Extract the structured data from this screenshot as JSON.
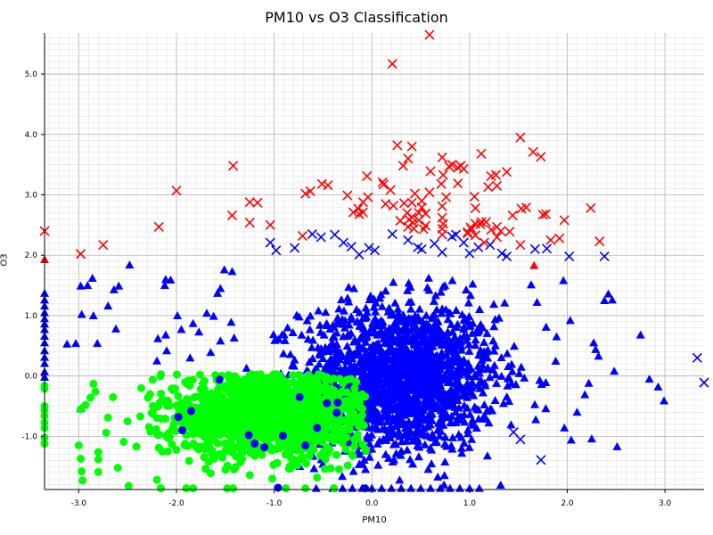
{
  "chart_data": {
    "type": "scatter",
    "title": "PM10 vs O3 Classification",
    "xlabel": "PM10",
    "ylabel": "O3",
    "xlim": [
      -3.35,
      3.4
    ],
    "ylim": [
      -1.88,
      5.68
    ],
    "x_ticks": [
      -3.0,
      -2.0,
      -1.0,
      0.0,
      1.0,
      2.0,
      3.0
    ],
    "y_ticks": [
      -1.0,
      0.0,
      1.0,
      2.0,
      3.0,
      4.0,
      5.0
    ],
    "grid": true,
    "legend": "none",
    "colors": {
      "red": "#ff0000",
      "blue": "#0000ff",
      "green": "#00ff00"
    },
    "series": [
      {
        "color": "red",
        "marker": "x",
        "points": [
          [
            0.59,
            5.65
          ],
          [
            0.21,
            5.17
          ],
          [
            1.52,
            3.95
          ],
          [
            1.73,
            3.63
          ],
          [
            1.65,
            3.71
          ],
          [
            0.26,
            3.82
          ],
          [
            0.41,
            3.8
          ],
          [
            0.72,
            3.62
          ],
          [
            0.82,
            3.5
          ],
          [
            0.88,
            3.45
          ],
          [
            0.91,
            3.48
          ],
          [
            1.12,
            3.68
          ],
          [
            0.32,
            3.48
          ],
          [
            0.37,
            3.6
          ],
          [
            0.6,
            3.39
          ],
          [
            0.73,
            3.33
          ],
          [
            0.79,
            3.47
          ],
          [
            1.22,
            3.31
          ],
          [
            1.27,
            3.33
          ],
          [
            1.38,
            3.38
          ],
          [
            1.19,
            3.13
          ],
          [
            1.28,
            3.15
          ],
          [
            0.88,
            3.19
          ],
          [
            0.94,
            3.43
          ],
          [
            0.71,
            3.18
          ],
          [
            -1.42,
            3.48
          ],
          [
            -2.0,
            3.07
          ],
          [
            -0.63,
            3.06
          ],
          [
            -0.68,
            3.02
          ],
          [
            -0.51,
            3.18
          ],
          [
            -0.45,
            3.16
          ],
          [
            -0.05,
            3.31
          ],
          [
            0.11,
            3.21
          ],
          [
            0.12,
            3.17
          ],
          [
            0.19,
            3.08
          ],
          [
            0.59,
            3.04
          ],
          [
            0.44,
            3.02
          ],
          [
            -0.25,
            2.99
          ],
          [
            -0.04,
            2.96
          ],
          [
            0.51,
            2.9
          ],
          [
            0.76,
            2.96
          ],
          [
            1.05,
            2.97
          ],
          [
            1.06,
            2.78
          ],
          [
            0.14,
            2.85
          ],
          [
            -1.25,
            2.88
          ],
          [
            -1.17,
            2.87
          ],
          [
            -0.09,
            2.88
          ],
          [
            0.41,
            2.87
          ],
          [
            0.33,
            2.86
          ],
          [
            0.22,
            2.82
          ],
          [
            0.51,
            2.79
          ],
          [
            0.72,
            2.81
          ],
          [
            -0.14,
            2.77
          ],
          [
            -0.19,
            2.71
          ],
          [
            -0.09,
            2.71
          ],
          [
            -0.13,
            2.68
          ],
          [
            0.36,
            2.7
          ],
          [
            0.41,
            2.63
          ],
          [
            0.48,
            2.7
          ],
          [
            0.55,
            2.69
          ],
          [
            0.72,
            2.62
          ],
          [
            1.12,
            2.55
          ],
          [
            1.44,
            2.66
          ],
          [
            1.53,
            2.77
          ],
          [
            1.58,
            2.79
          ],
          [
            1.75,
            2.67
          ],
          [
            1.78,
            2.68
          ],
          [
            1.97,
            2.58
          ],
          [
            2.24,
            2.78
          ],
          [
            -1.43,
            2.66
          ],
          [
            -2.18,
            2.47
          ],
          [
            -1.25,
            2.54
          ],
          [
            -1.04,
            2.5
          ],
          [
            0.29,
            2.57
          ],
          [
            0.38,
            2.59
          ],
          [
            0.42,
            2.54
          ],
          [
            0.48,
            2.58
          ],
          [
            0.55,
            2.49
          ],
          [
            0.37,
            2.47
          ],
          [
            0.43,
            2.44
          ],
          [
            0.53,
            2.43
          ],
          [
            0.73,
            2.52
          ],
          [
            0.72,
            2.44
          ],
          [
            1.01,
            2.46
          ],
          [
            1.06,
            2.52
          ],
          [
            1.11,
            2.51
          ],
          [
            1.17,
            2.55
          ],
          [
            1.22,
            2.42
          ],
          [
            1.28,
            2.47
          ],
          [
            1.32,
            2.4
          ],
          [
            1.41,
            2.39
          ],
          [
            0.98,
            2.38
          ],
          [
            1.02,
            2.43
          ],
          [
            1.06,
            2.33
          ],
          [
            0.98,
            2.36
          ],
          [
            1.28,
            2.3
          ],
          [
            0.72,
            2.34
          ],
          [
            -0.71,
            2.32
          ],
          [
            -2.75,
            2.17
          ],
          [
            -3.35,
            2.4
          ],
          [
            -2.98,
            2.02
          ],
          [
            1.52,
            2.17
          ],
          [
            1.83,
            2.25
          ],
          [
            1.92,
            2.28
          ],
          [
            2.33,
            2.23
          ],
          [
            1.15,
            2.21
          ]
        ]
      },
      {
        "color": "red",
        "marker": "triangle",
        "points": [
          [
            -3.35,
            1.93
          ],
          [
            1.66,
            1.83
          ]
        ]
      },
      {
        "color": "blue",
        "marker": "x",
        "points": [
          [
            3.33,
            0.3
          ],
          [
            3.4,
            -0.11
          ],
          [
            1.67,
            2.1
          ],
          [
            1.79,
            2.11
          ],
          [
            2.02,
            1.98
          ],
          [
            2.38,
            1.98
          ],
          [
            -1.04,
            2.21
          ],
          [
            -0.98,
            2.08
          ],
          [
            -0.79,
            2.12
          ],
          [
            -0.52,
            2.3
          ],
          [
            -0.38,
            2.34
          ],
          [
            -0.29,
            2.21
          ],
          [
            -0.13,
            2.01
          ],
          [
            -0.03,
            2.12
          ],
          [
            0.21,
            2.35
          ],
          [
            0.37,
            2.25
          ],
          [
            0.47,
            2.13
          ],
          [
            0.51,
            2.1
          ],
          [
            0.64,
            2.19
          ],
          [
            0.72,
            2.05
          ],
          [
            0.82,
            2.31
          ],
          [
            0.86,
            2.34
          ],
          [
            0.94,
            2.21
          ],
          [
            1.0,
            2.03
          ],
          [
            1.21,
            2.17
          ],
          [
            1.33,
            2.03
          ],
          [
            1.09,
            2.13
          ],
          [
            1.38,
            1.98
          ],
          [
            1.52,
            -1.05
          ],
          [
            1.73,
            -1.39
          ],
          [
            1.45,
            -0.93
          ],
          [
            -0.21,
            2.14
          ],
          [
            0.03,
            2.08
          ],
          [
            -0.61,
            2.35
          ]
        ]
      },
      {
        "color": "blue",
        "marker": "triangle",
        "cloud": {
          "n": 1700,
          "cx": 0.28,
          "cy": -0.02,
          "sx": 0.5,
          "sy": 0.62,
          "xmin": -1.55,
          "xmax": 2.1,
          "ymin": -1.88,
          "ymax": 1.95
        },
        "points": [
          [
            2.75,
            0.68
          ],
          [
            2.48,
            0.08
          ],
          [
            2.32,
            0.33
          ],
          [
            2.29,
            0.44
          ],
          [
            2.27,
            0.55
          ],
          [
            2.38,
            1.25
          ],
          [
            2.42,
            1.36
          ],
          [
            2.46,
            1.26
          ],
          [
            2.51,
            -1.17
          ],
          [
            2.25,
            -1.04
          ],
          [
            2.22,
            -0.12
          ],
          [
            2.18,
            -0.31
          ],
          [
            2.1,
            -0.6
          ],
          [
            1.97,
            -0.86
          ],
          [
            2.04,
            -1.06
          ],
          [
            1.78,
            -0.54
          ],
          [
            1.96,
            1.58
          ],
          [
            2.03,
            0.92
          ],
          [
            1.89,
            0.65
          ],
          [
            1.69,
            1.22
          ],
          [
            1.63,
            1.51
          ],
          [
            2.84,
            -0.05
          ],
          [
            2.93,
            -0.18
          ],
          [
            2.99,
            -0.41
          ],
          [
            -2.98,
            1.49
          ],
          [
            -2.91,
            1.5
          ],
          [
            -2.86,
            1.62
          ],
          [
            -2.64,
            1.43
          ],
          [
            -2.7,
            1.16
          ],
          [
            -2.48,
            1.84
          ],
          [
            -2.59,
            1.49
          ],
          [
            -2.62,
            0.78
          ],
          [
            -2.81,
            0.54
          ],
          [
            -2.85,
            1.0
          ],
          [
            -2.97,
            1.02
          ],
          [
            -3.12,
            0.53
          ],
          [
            -3.03,
            0.54
          ],
          [
            -2.11,
            1.6
          ],
          [
            -2.12,
            1.5
          ],
          [
            -2.06,
            1.59
          ],
          [
            -2.11,
            0.68
          ],
          [
            -2.19,
            0.62
          ],
          [
            -1.99,
            1.0
          ],
          [
            -1.95,
            0.77
          ],
          [
            -1.83,
            0.87
          ],
          [
            -1.69,
            1.04
          ],
          [
            -1.62,
            0.99
          ],
          [
            -1.55,
            0.58
          ],
          [
            -1.43,
            1.73
          ],
          [
            -1.51,
            1.76
          ],
          [
            -1.55,
            1.45
          ],
          [
            -1.58,
            1.37
          ],
          [
            -1.77,
            0.73
          ],
          [
            -1.44,
            0.89
          ],
          [
            -3.35,
            1.37
          ],
          [
            -3.35,
            1.26
          ],
          [
            -3.35,
            1.16
          ],
          [
            -3.35,
            1.05
          ],
          [
            -3.35,
            0.95
          ],
          [
            -3.35,
            0.86
          ],
          [
            -3.35,
            0.77
          ],
          [
            -3.35,
            0.66
          ],
          [
            -3.35,
            0.55
          ],
          [
            -3.35,
            0.42
          ],
          [
            -3.35,
            0.31
          ],
          [
            -3.35,
            0.21
          ],
          [
            -3.35,
            0.07
          ],
          [
            -3.35,
            -0.02
          ],
          [
            -2.98,
            -0.54
          ],
          [
            -2.1,
            0.42
          ],
          [
            -2.2,
            0.25
          ],
          [
            -1.86,
            0.3
          ],
          [
            -1.65,
            0.39
          ],
          [
            -1.73,
            -0.08
          ],
          [
            -1.41,
            0.63
          ],
          [
            -0.57,
            -1.86
          ],
          [
            -0.3,
            -1.86
          ],
          [
            -0.1,
            -1.86
          ],
          [
            0.1,
            -1.86
          ],
          [
            0.3,
            -1.86
          ],
          [
            0.5,
            -1.86
          ],
          [
            0.7,
            -1.86
          ],
          [
            0.9,
            -1.86
          ],
          [
            1.1,
            -1.86
          ],
          [
            0.0,
            -1.86
          ],
          [
            0.2,
            -1.86
          ],
          [
            0.4,
            -1.86
          ],
          [
            0.6,
            -1.86
          ],
          [
            0.8,
            -1.86
          ],
          [
            -0.2,
            -1.86
          ],
          [
            -0.4,
            -1.86
          ],
          [
            1.0,
            -1.86
          ]
        ]
      },
      {
        "color": "blue",
        "marker": "circle",
        "points": [
          [
            -0.07,
            -1.86
          ],
          [
            -0.96,
            -1.85
          ],
          [
            -1.85,
            -0.58
          ],
          [
            -1.94,
            -0.9
          ],
          [
            -1.98,
            -0.68
          ],
          [
            -1.1,
            -1.18
          ],
          [
            -0.74,
            -0.35
          ],
          [
            -0.68,
            -1.15
          ],
          [
            -0.36,
            -0.61
          ],
          [
            -0.35,
            -0.44
          ],
          [
            -1.56,
            -0.06
          ],
          [
            -1.2,
            -1.12
          ],
          [
            -0.91,
            -0.99
          ],
          [
            -0.56,
            -0.86
          ],
          [
            -0.46,
            -0.45
          ],
          [
            -1.26,
            -0.98
          ]
        ]
      },
      {
        "color": "green",
        "marker": "circle",
        "cloud": {
          "n": 1500,
          "cx": -1.05,
          "cy": -0.62,
          "sx": 0.55,
          "sy": 0.35,
          "xmin": -2.3,
          "xmax": -0.06,
          "ymin": -1.6,
          "ymax": 0.04
        },
        "points": [
          [
            -3.35,
            -0.16
          ],
          [
            -3.35,
            -0.21
          ],
          [
            -3.35,
            -0.5
          ],
          [
            -3.35,
            -0.57
          ],
          [
            -3.35,
            -0.66
          ],
          [
            -3.35,
            -0.77
          ],
          [
            -3.35,
            -0.86
          ],
          [
            -3.35,
            -1.02
          ],
          [
            -3.35,
            -1.12
          ],
          [
            -3.0,
            -1.15
          ],
          [
            -2.98,
            -1.37
          ],
          [
            -2.97,
            -1.58
          ],
          [
            -2.96,
            -1.73
          ],
          [
            -2.8,
            -1.38
          ],
          [
            -2.8,
            -1.59
          ],
          [
            -2.8,
            -1.26
          ],
          [
            -2.85,
            -0.13
          ],
          [
            -2.83,
            -0.26
          ],
          [
            -2.88,
            -0.36
          ],
          [
            -2.93,
            -0.48
          ],
          [
            -2.65,
            -0.35
          ],
          [
            -2.7,
            -0.69
          ],
          [
            -2.72,
            -0.94
          ],
          [
            -2.5,
            -0.75
          ],
          [
            -2.54,
            -1.09
          ],
          [
            -2.6,
            -1.52
          ],
          [
            -2.49,
            -1.82
          ],
          [
            -2.2,
            -1.72
          ],
          [
            -2.16,
            -1.86
          ],
          [
            -2.27,
            -0.3
          ],
          [
            -2.36,
            -0.2
          ],
          [
            -2.37,
            -0.67
          ],
          [
            -2.41,
            -1.17
          ],
          [
            -1.9,
            -1.86
          ],
          [
            -1.83,
            -1.86
          ],
          [
            -1.42,
            -1.86
          ],
          [
            -1.48,
            -1.86
          ],
          [
            -1.02,
            -1.7
          ],
          [
            -0.88,
            -1.86
          ],
          [
            -0.68,
            -1.86
          ],
          [
            -0.39,
            -1.86
          ],
          [
            -0.56,
            -1.68
          ],
          [
            -0.48,
            -1.54
          ],
          [
            -1.65,
            -1.61
          ],
          [
            -2.09,
            -1.25
          ],
          [
            -1.25,
            -1.64
          ],
          [
            -0.16,
            -0.1
          ],
          [
            -0.21,
            -0.61
          ],
          [
            -0.18,
            -1.05
          ],
          [
            -0.12,
            -0.38
          ],
          [
            -0.1,
            -0.65
          ],
          [
            -2.98,
            -0.55
          ]
        ]
      }
    ]
  }
}
